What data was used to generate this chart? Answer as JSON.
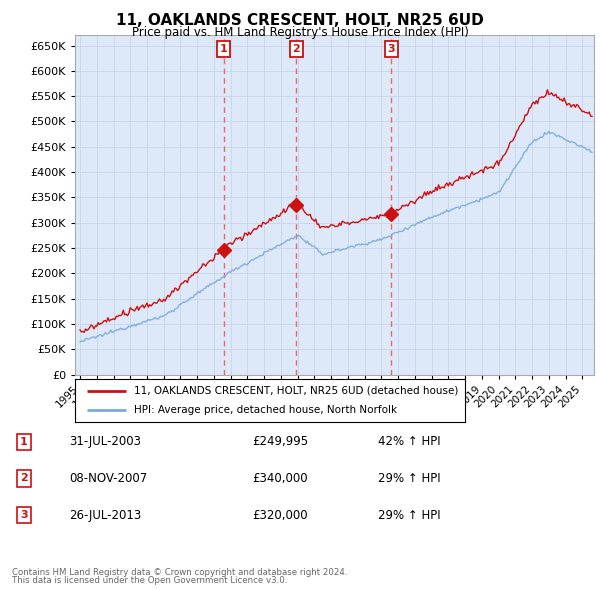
{
  "title": "11, OAKLANDS CRESCENT, HOLT, NR25 6UD",
  "subtitle": "Price paid vs. HM Land Registry's House Price Index (HPI)",
  "legend_line1": "11, OAKLANDS CRESCENT, HOLT, NR25 6UD (detached house)",
  "legend_line2": "HPI: Average price, detached house, North Norfolk",
  "footer1": "Contains HM Land Registry data © Crown copyright and database right 2024.",
  "footer2": "This data is licensed under the Open Government Licence v3.0.",
  "sales": [
    {
      "label": "1",
      "date": "31-JUL-2003",
      "price": 249995,
      "price_str": "£249,995",
      "pct": "42%",
      "direction": "↑",
      "x": 2003.583
    },
    {
      "label": "2",
      "date": "08-NOV-2007",
      "price": 340000,
      "price_str": "£340,000",
      "pct": "29%",
      "direction": "↑",
      "x": 2007.917
    },
    {
      "label": "3",
      "date": "26-JUL-2013",
      "price": 320000,
      "price_str": "£320,000",
      "pct": "29%",
      "direction": "↑",
      "x": 2013.583
    }
  ],
  "hpi_color": "#7aaadd",
  "price_color": "#cc1111",
  "vline_color": "#ee6666",
  "marker_bg": "#ffffff",
  "marker_border": "#cc1111",
  "ylim": [
    0,
    670000
  ],
  "ytick_step": 50000,
  "background_color": "#ffffff",
  "grid_color": "#c8d4e8",
  "chart_bg": "#dde8f8"
}
